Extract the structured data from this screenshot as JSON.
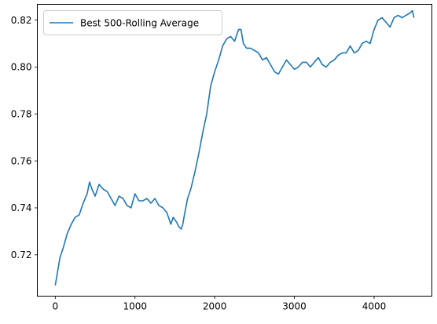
{
  "chart_data": {
    "type": "line",
    "title": "",
    "xlabel": "",
    "ylabel": "",
    "xlim": [
      -225,
      4725
    ],
    "ylim": [
      0.7024,
      0.8267
    ],
    "xticks": [
      0,
      1000,
      2000,
      3000,
      4000
    ],
    "yticks": [
      0.72,
      0.74,
      0.76,
      0.78,
      0.8,
      0.82
    ],
    "ytick_labels": [
      "0.72",
      "0.74",
      "0.76",
      "0.78",
      "0.80",
      "0.82"
    ],
    "grid": false,
    "legend_position": "top-left",
    "series": [
      {
        "name": "Best 500-Rolling Average",
        "color": "#1f77b4",
        "x": [
          0,
          30,
          60,
          100,
          150,
          200,
          250,
          300,
          350,
          400,
          430,
          460,
          500,
          550,
          600,
          650,
          700,
          750,
          800,
          850,
          900,
          950,
          1000,
          1050,
          1100,
          1150,
          1200,
          1250,
          1300,
          1350,
          1400,
          1450,
          1480,
          1520,
          1550,
          1580,
          1600,
          1620,
          1660,
          1700,
          1750,
          1800,
          1850,
          1900,
          1950,
          2000,
          2050,
          2100,
          2150,
          2200,
          2250,
          2300,
          2330,
          2360,
          2400,
          2450,
          2500,
          2550,
          2600,
          2650,
          2700,
          2750,
          2800,
          2850,
          2900,
          2950,
          3000,
          3050,
          3100,
          3150,
          3200,
          3250,
          3300,
          3350,
          3400,
          3450,
          3500,
          3550,
          3600,
          3650,
          3700,
          3750,
          3800,
          3850,
          3900,
          3950,
          4000,
          4050,
          4100,
          4150,
          4200,
          4250,
          4300,
          4350,
          4400,
          4450,
          4480,
          4500
        ],
        "y": [
          0.707,
          0.713,
          0.719,
          0.723,
          0.729,
          0.733,
          0.736,
          0.737,
          0.742,
          0.746,
          0.751,
          0.748,
          0.745,
          0.75,
          0.748,
          0.747,
          0.744,
          0.741,
          0.745,
          0.744,
          0.741,
          0.74,
          0.746,
          0.743,
          0.743,
          0.744,
          0.742,
          0.744,
          0.741,
          0.74,
          0.738,
          0.733,
          0.736,
          0.734,
          0.732,
          0.731,
          0.733,
          0.737,
          0.744,
          0.748,
          0.755,
          0.763,
          0.772,
          0.78,
          0.792,
          0.798,
          0.803,
          0.809,
          0.812,
          0.813,
          0.811,
          0.816,
          0.816,
          0.81,
          0.808,
          0.808,
          0.807,
          0.806,
          0.803,
          0.804,
          0.801,
          0.798,
          0.797,
          0.8,
          0.803,
          0.801,
          0.799,
          0.8,
          0.802,
          0.802,
          0.8,
          0.802,
          0.804,
          0.801,
          0.8,
          0.802,
          0.803,
          0.805,
          0.806,
          0.806,
          0.809,
          0.806,
          0.807,
          0.81,
          0.811,
          0.81,
          0.816,
          0.82,
          0.821,
          0.819,
          0.817,
          0.821,
          0.822,
          0.821,
          0.822,
          0.823,
          0.824,
          0.821
        ]
      }
    ]
  }
}
